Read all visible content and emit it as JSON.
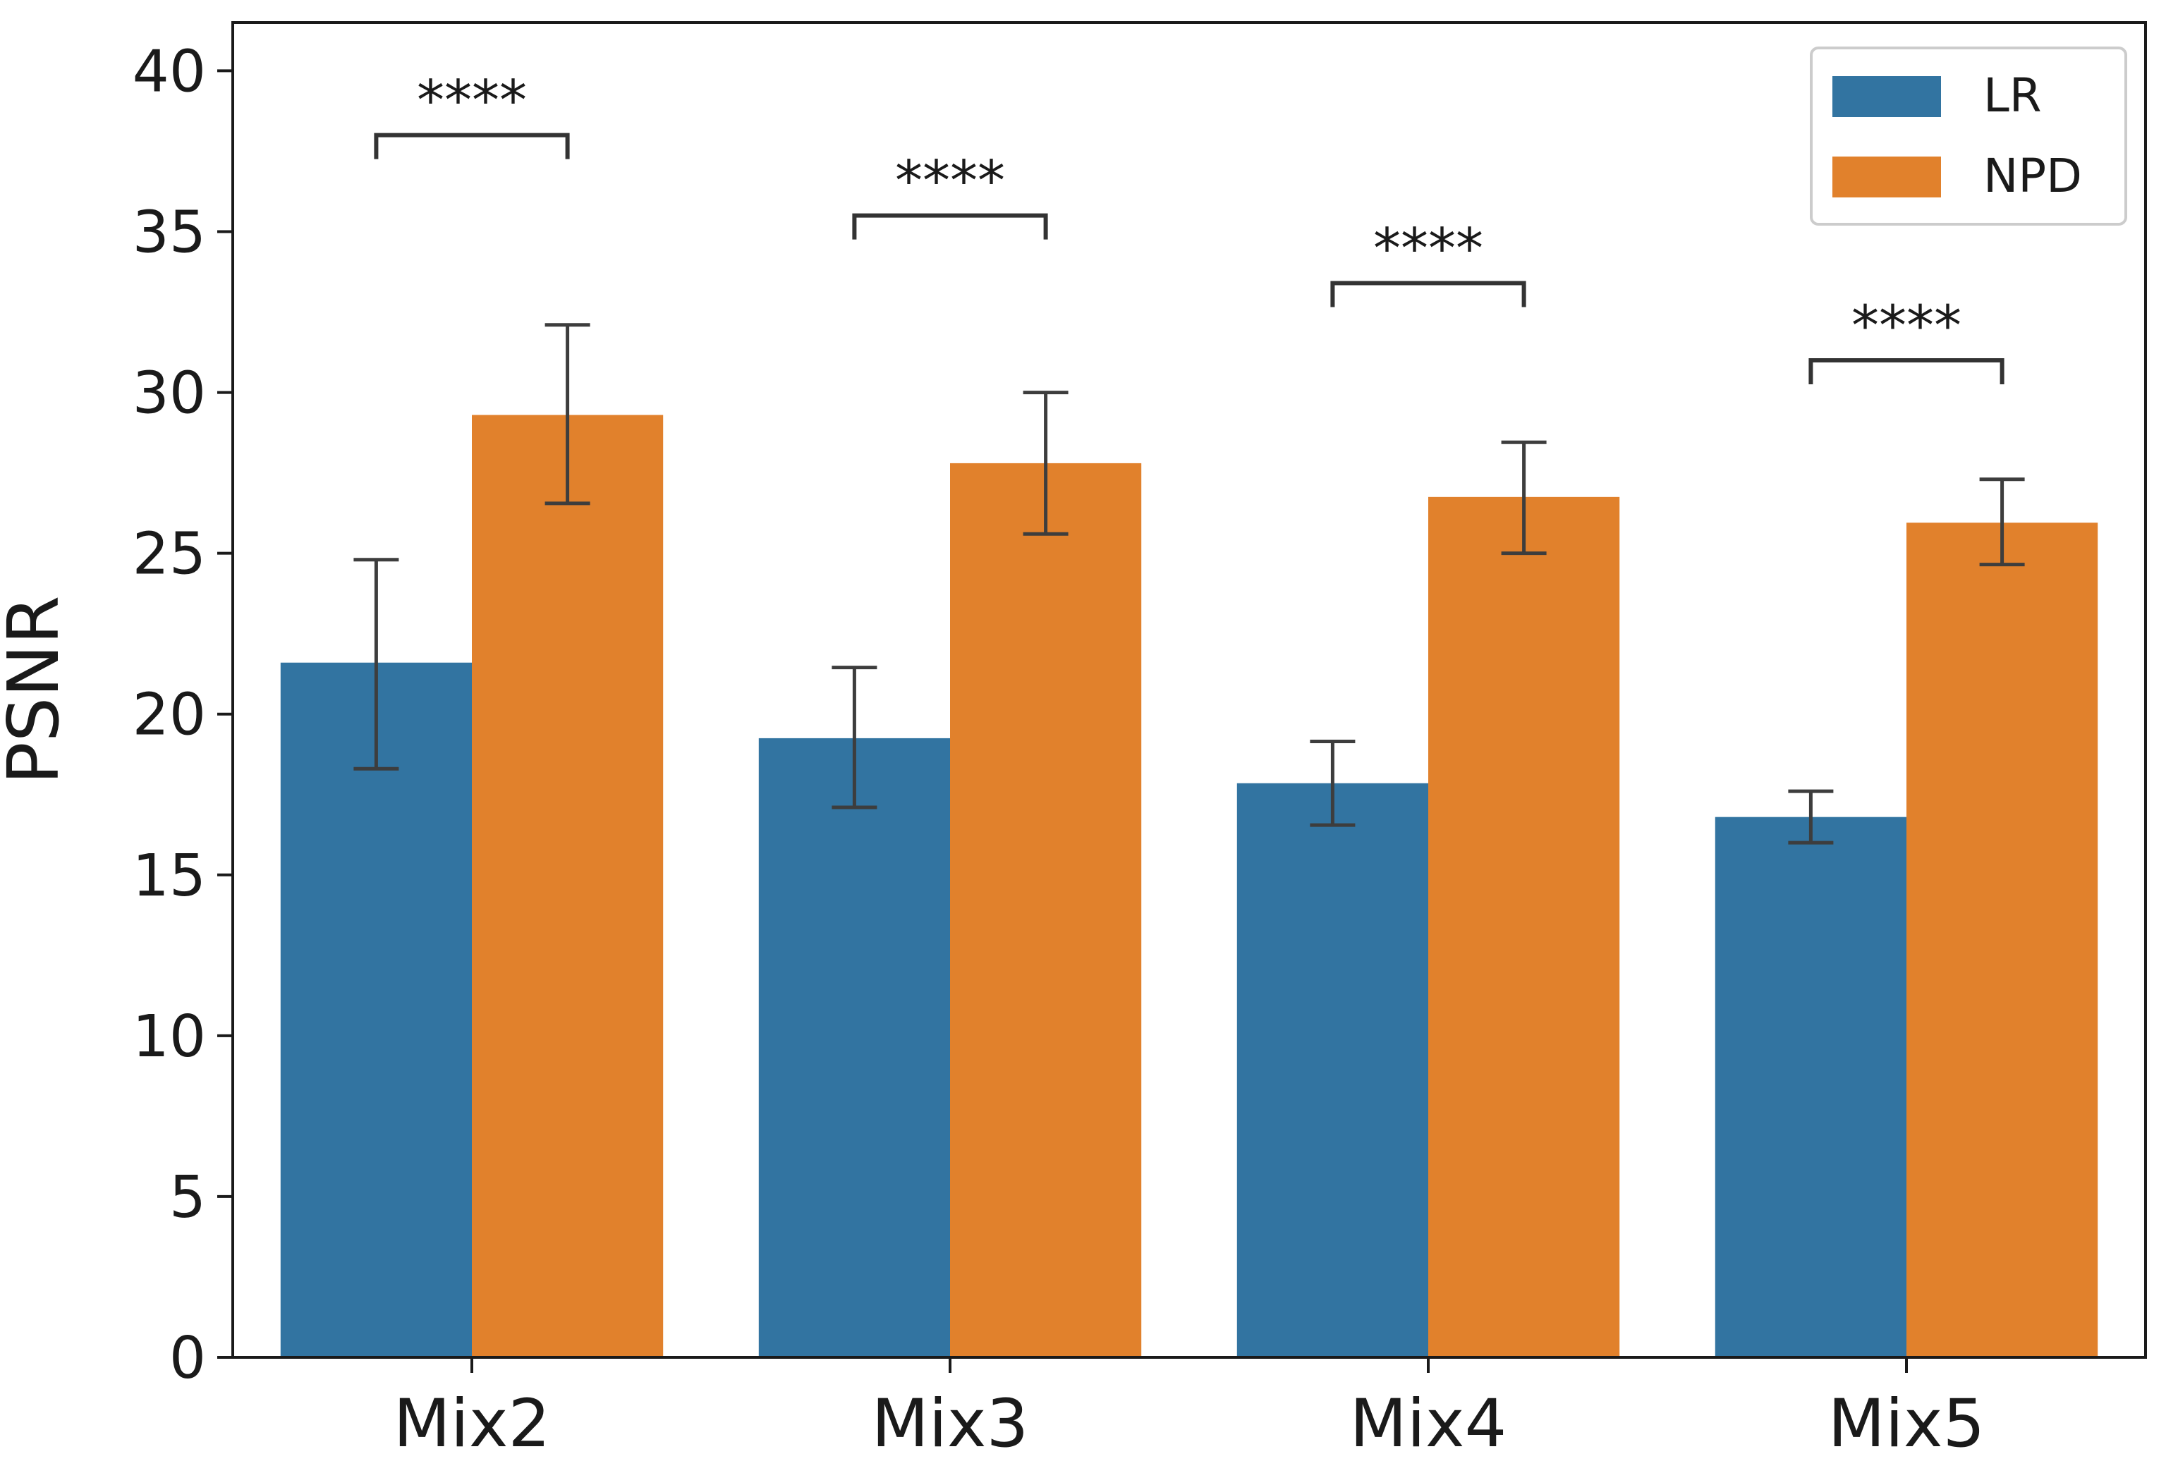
{
  "chart_data": {
    "type": "bar",
    "title": "",
    "xlabel": "",
    "ylabel": "PSNR",
    "ylim": [
      0,
      41.5
    ],
    "yticks": [
      0,
      5,
      10,
      15,
      20,
      25,
      30,
      35,
      40
    ],
    "grid": false,
    "categories": [
      "Mix2",
      "Mix3",
      "Mix4",
      "Mix5"
    ],
    "series": [
      {
        "name": "LR",
        "color": "#3274a1",
        "values": [
          21.6,
          19.25,
          17.85,
          16.8
        ],
        "error_low": [
          18.3,
          17.1,
          16.55,
          16.0
        ],
        "error_high": [
          24.8,
          21.45,
          19.15,
          17.6
        ]
      },
      {
        "name": "NPD",
        "color": "#e1812c",
        "values": [
          29.3,
          27.8,
          26.75,
          25.95
        ],
        "error_low": [
          26.55,
          25.6,
          25.0,
          24.65
        ],
        "error_high": [
          32.1,
          30.0,
          28.45,
          27.3
        ]
      }
    ],
    "error_bar_color": "#3d3d3d",
    "legend": {
      "placement": "top-right"
    },
    "annotations": [
      {
        "category": "Mix2",
        "text": "****",
        "bracket_y": 38.0
      },
      {
        "category": "Mix3",
        "text": "****",
        "bracket_y": 35.5
      },
      {
        "category": "Mix4",
        "text": "****",
        "bracket_y": 33.4
      },
      {
        "category": "Mix5",
        "text": "****",
        "bracket_y": 31.0
      }
    ]
  }
}
